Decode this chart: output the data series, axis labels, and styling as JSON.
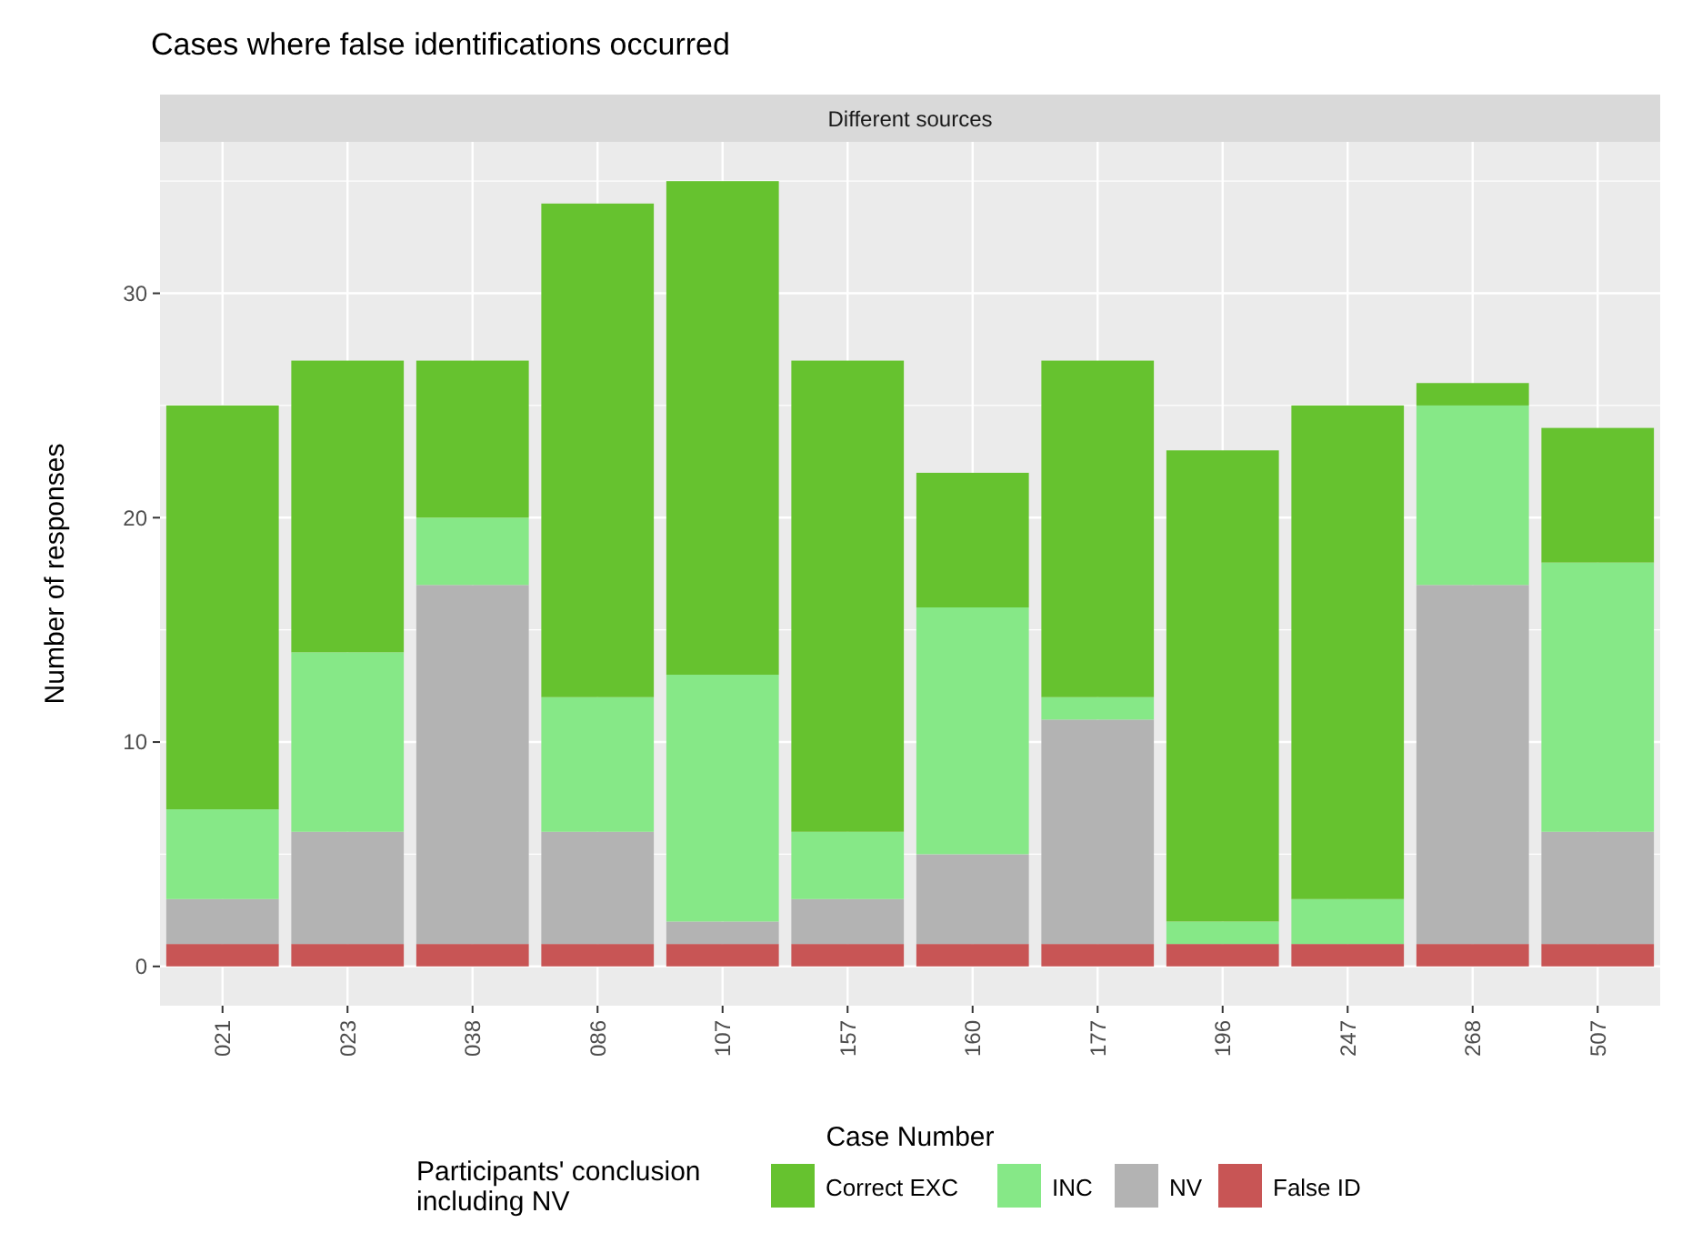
{
  "chart_data": {
    "type": "bar",
    "title": "Cases where false identifications occurred",
    "subtitle": "Different sources",
    "xlabel": "Case Number",
    "ylabel": "Number of responses",
    "legend_title": "Participants' conclusion including NV",
    "categories": [
      "021",
      "023",
      "038",
      "086",
      "107",
      "157",
      "160",
      "177",
      "196",
      "247",
      "268",
      "507"
    ],
    "stacked": true,
    "series": [
      {
        "name": "False ID",
        "color": "#c85555",
        "values": [
          1,
          1,
          1,
          1,
          1,
          1,
          1,
          1,
          1,
          1,
          1,
          1
        ]
      },
      {
        "name": "NV",
        "color": "#b3b3b3",
        "values": [
          2,
          5,
          16,
          5,
          1,
          2,
          4,
          10,
          0,
          0,
          16,
          5
        ]
      },
      {
        "name": "INC",
        "color": "#86e887",
        "values": [
          4,
          8,
          3,
          6,
          11,
          3,
          11,
          1,
          1,
          2,
          8,
          12
        ]
      },
      {
        "name": "Correct EXC",
        "color": "#66c22f",
        "values": [
          18,
          13,
          7,
          22,
          22,
          21,
          6,
          15,
          21,
          22,
          1,
          6
        ]
      }
    ],
    "ylim": [
      -1.75,
      36.75
    ],
    "yticks": [
      0,
      10,
      20,
      30
    ],
    "grid": true,
    "legend": "bottom"
  }
}
